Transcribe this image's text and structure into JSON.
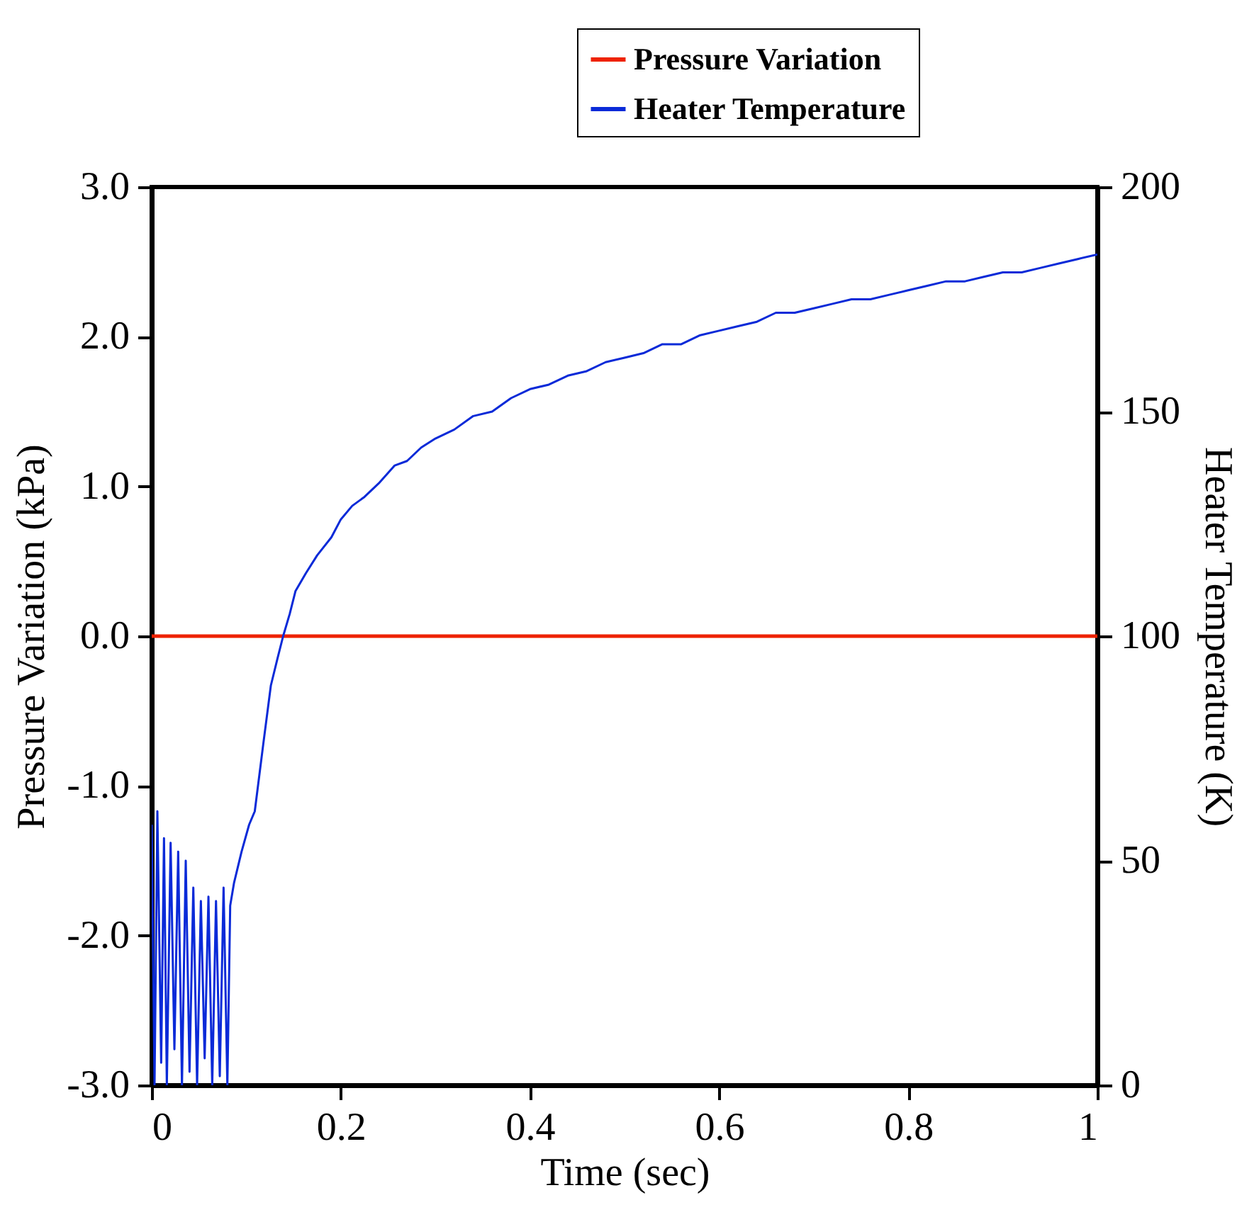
{
  "chart_data": {
    "type": "line",
    "xlabel": "Time (sec)",
    "ylabel": "Pressure Variation (kPa)",
    "y2label": "Heater Temperature (K)",
    "xlim": [
      0,
      1
    ],
    "xticks": [
      0,
      0.2,
      0.4,
      0.6,
      0.8,
      1
    ],
    "ylim": [
      -3,
      3
    ],
    "yticks": [
      {
        "value": -3,
        "label": "-3.0"
      },
      {
        "value": -2,
        "label": "-2.0"
      },
      {
        "value": -1,
        "label": "-1.0"
      },
      {
        "value": 0,
        "label": "0.0"
      },
      {
        "value": 1,
        "label": "1.0"
      },
      {
        "value": 2,
        "label": "2.0"
      },
      {
        "value": 3,
        "label": "3.0"
      }
    ],
    "y2lim": [
      0,
      200
    ],
    "y2ticks": [
      0,
      50,
      100,
      150,
      200
    ],
    "legend": "top right",
    "grid": false,
    "line_style": "solid",
    "marker": "none",
    "series": [
      {
        "name": "Pressure Variation",
        "color": "#ee2200",
        "x": [
          0,
          1
        ],
        "values": [
          0,
          0
        ]
      },
      {
        "name": "Heater Temperature",
        "color": "#0a2ad8",
        "axis": "y2",
        "x": [
          0,
          0.003,
          0.006,
          0.01,
          0.013,
          0.016,
          0.02,
          0.024,
          0.028,
          0.032,
          0.036,
          0.04,
          0.044,
          0.048,
          0.052,
          0.056,
          0.06,
          0.064,
          0.068,
          0.072,
          0.076,
          0.08,
          0.083,
          0.087,
          0.095,
          0.103,
          0.109,
          0.118,
          0.126,
          0.133,
          0.139,
          0.146,
          0.152,
          0.163,
          0.175,
          0.19,
          0.2,
          0.212,
          0.225,
          0.24,
          0.257,
          0.27,
          0.285,
          0.3,
          0.32,
          0.34,
          0.36,
          0.38,
          0.4,
          0.42,
          0.44,
          0.46,
          0.48,
          0.5,
          0.52,
          0.54,
          0.56,
          0.58,
          0.6,
          0.62,
          0.64,
          0.66,
          0.68,
          0.7,
          0.72,
          0.74,
          0.76,
          0.78,
          0.8,
          0.82,
          0.84,
          0.86,
          0.88,
          0.9,
          0.92,
          0.94,
          0.96,
          0.98,
          1
        ],
        "values": [
          58,
          0,
          61,
          5,
          55,
          0,
          54,
          8,
          52,
          0,
          50,
          3,
          44,
          0,
          41,
          6,
          42,
          0,
          41,
          2,
          44,
          0,
          40,
          45,
          52,
          58,
          61,
          76,
          89,
          95,
          100,
          105,
          110,
          114,
          118,
          122,
          126,
          129,
          131,
          134,
          138,
          139,
          142,
          144,
          146,
          149,
          150,
          153,
          155,
          156,
          158,
          159,
          161,
          162,
          163,
          165,
          165,
          167,
          168,
          169,
          170,
          172,
          172,
          173,
          174,
          175,
          175,
          176,
          177,
          178,
          179,
          179,
          180,
          181,
          181,
          182,
          183,
          184,
          185
        ]
      }
    ]
  }
}
